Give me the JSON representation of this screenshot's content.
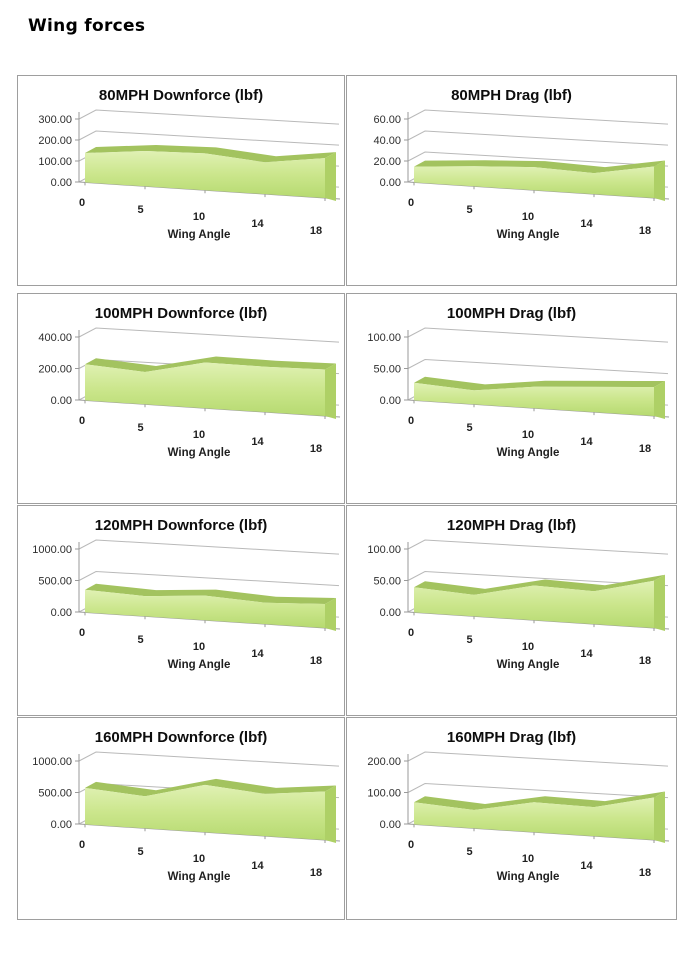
{
  "page": {
    "title": "Wing forces"
  },
  "shared_axis": {
    "x_label": "Wing Angle",
    "x_tick_labels": [
      "0",
      "5",
      "10",
      "14",
      "18"
    ]
  },
  "colors": {
    "area_ridge": "#a3c35f",
    "area_side": "#aed066",
    "area_face_light": "#e0f1b4",
    "area_face_mid": "#cbe68c",
    "area_face_dark": "#b6da70",
    "gridline": "#b9b9b9",
    "axis": "#9a9a9a",
    "title_text": "#0d0d0d",
    "tick_text": "#2e2e2e"
  },
  "chart_data": [
    {
      "type": "area",
      "title": "80MPH Downforce (lbf)",
      "categories": [
        0,
        5,
        10,
        14,
        18
      ],
      "values": [
        140,
        168,
        175,
        152,
        190
      ],
      "xlabel": "Wing Angle",
      "ylabel": "",
      "ylim": [
        0,
        300
      ],
      "y_ticks": [
        0,
        100,
        200,
        300
      ],
      "y_tick_labels": [
        "0.00",
        "100.00",
        "200.00",
        "300.00"
      ],
      "grid": true,
      "legend": "none"
    },
    {
      "type": "area",
      "title": "80MPH Drag (lbf)",
      "categories": [
        0,
        5,
        10,
        14,
        18
      ],
      "values": [
        15,
        19,
        22,
        20,
        30
      ],
      "xlabel": "Wing Angle",
      "ylabel": "",
      "ylim": [
        0,
        60
      ],
      "y_ticks": [
        0,
        20,
        40,
        60
      ],
      "y_tick_labels": [
        "0.00",
        "20.00",
        "40.00",
        "60.00"
      ],
      "grid": true,
      "legend": "none"
    },
    {
      "type": "area",
      "title": "100MPH Downforce (lbf)",
      "categories": [
        0,
        5,
        10,
        14,
        18
      ],
      "values": [
        230,
        205,
        290,
        288,
        295
      ],
      "xlabel": "Wing Angle",
      "ylabel": "",
      "ylim": [
        0,
        400
      ],
      "y_ticks": [
        0,
        200,
        400
      ],
      "y_tick_labels": [
        "0.00",
        "200.00",
        "400.00"
      ],
      "grid": true,
      "legend": "none"
    },
    {
      "type": "area",
      "title": "100MPH Drag (lbf)",
      "categories": [
        0,
        5,
        10,
        14,
        18
      ],
      "values": [
        28,
        22,
        34,
        40,
        46
      ],
      "xlabel": "Wing Angle",
      "ylabel": "",
      "ylim": [
        0,
        100
      ],
      "y_ticks": [
        0,
        50,
        100
      ],
      "y_tick_labels": [
        "0.00",
        "50.00",
        "100.00"
      ],
      "grid": true,
      "legend": "none"
    },
    {
      "type": "area",
      "title": "120MPH Downforce (lbf)",
      "categories": [
        0,
        5,
        10,
        14,
        18
      ],
      "values": [
        360,
        320,
        390,
        340,
        380
      ],
      "xlabel": "Wing Angle",
      "ylabel": "",
      "ylim": [
        0,
        1000
      ],
      "y_ticks": [
        0,
        500,
        1000
      ],
      "y_tick_labels": [
        "0.00",
        "500.00",
        "1000.00"
      ],
      "grid": true,
      "legend": "none"
    },
    {
      "type": "area",
      "title": "120MPH Drag (lbf)",
      "categories": [
        0,
        5,
        10,
        14,
        18
      ],
      "values": [
        40,
        34,
        55,
        52,
        75
      ],
      "xlabel": "Wing Angle",
      "ylabel": "",
      "ylim": [
        0,
        100
      ],
      "y_ticks": [
        0,
        50,
        100
      ],
      "y_tick_labels": [
        "0.00",
        "50.00",
        "100.00"
      ],
      "grid": true,
      "legend": "none"
    },
    {
      "type": "area",
      "title": "160MPH Downforce (lbf)",
      "categories": [
        0,
        5,
        10,
        14,
        18
      ],
      "values": [
        580,
        510,
        750,
        670,
        770
      ],
      "xlabel": "Wing Angle",
      "ylabel": "",
      "ylim": [
        0,
        1000
      ],
      "y_ticks": [
        0,
        500,
        1000
      ],
      "y_tick_labels": [
        "0.00",
        "500.00",
        "1000.00"
      ],
      "grid": true,
      "legend": "none"
    },
    {
      "type": "area",
      "title": "160MPH Drag (lbf)",
      "categories": [
        0,
        5,
        10,
        14,
        18
      ],
      "values": [
        70,
        58,
        95,
        92,
        135
      ],
      "xlabel": "Wing Angle",
      "ylabel": "",
      "ylim": [
        0,
        200
      ],
      "y_ticks": [
        0,
        100,
        200
      ],
      "y_tick_labels": [
        "0.00",
        "100.00",
        "200.00"
      ],
      "grid": true,
      "legend": "none"
    }
  ]
}
